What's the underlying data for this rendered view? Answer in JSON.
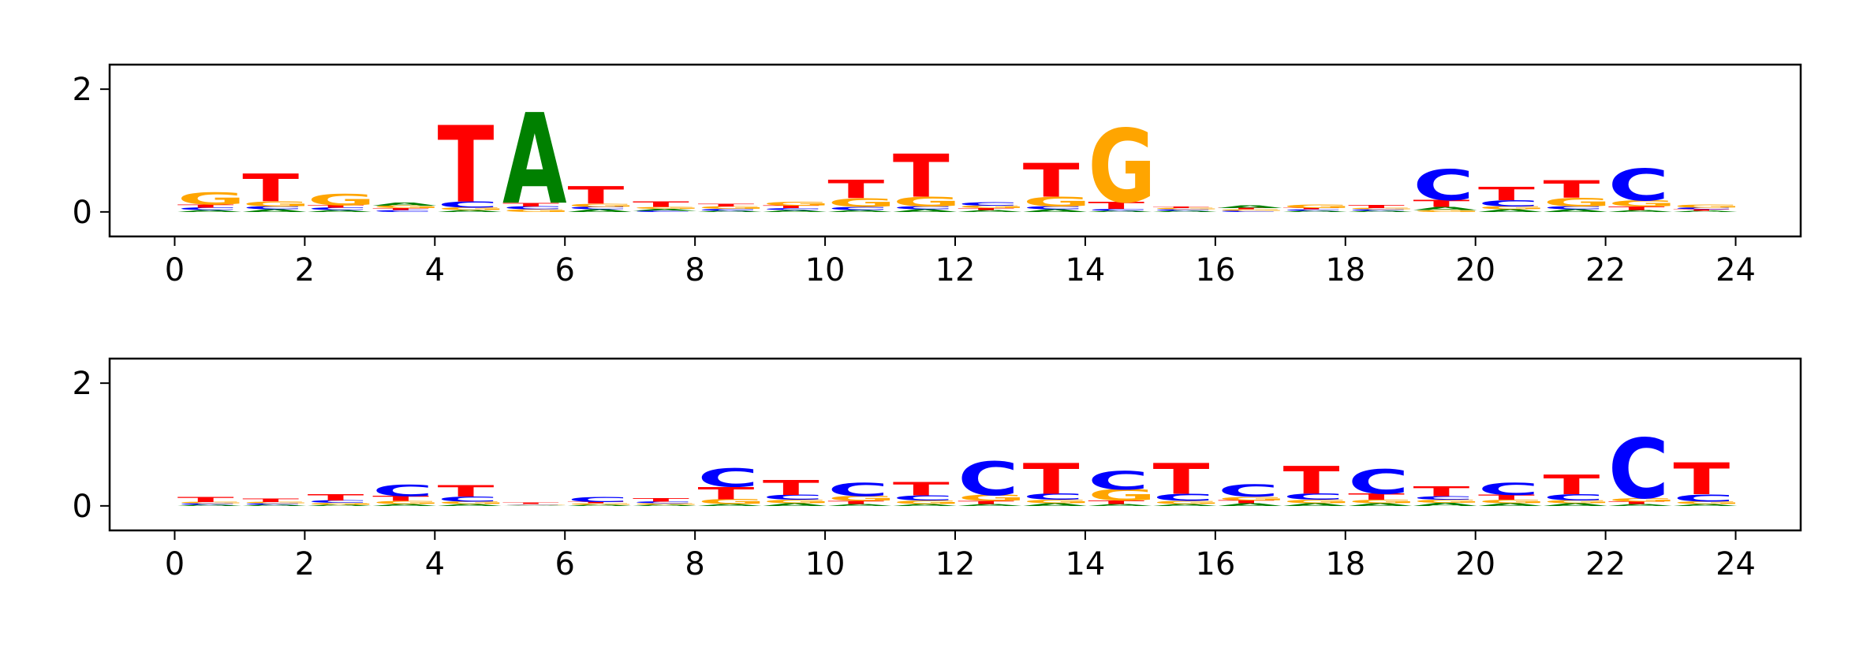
{
  "colors": {
    "A": "#008000",
    "C": "#0000ff",
    "G": "#ffa500",
    "T": "#ff0000"
  },
  "chart_data": [
    {
      "type": "sequence-logo",
      "title": "",
      "xlabel": "",
      "ylabel": "",
      "xlim": [
        -1,
        25
      ],
      "ylim": [
        -0.4,
        2.4
      ],
      "xticks": [
        "0",
        "2",
        "4",
        "6",
        "8",
        "10",
        "12",
        "14",
        "16",
        "18",
        "20",
        "22",
        "24"
      ],
      "yticks": [
        "0",
        "2"
      ],
      "positions": [
        {
          "pos": 0,
          "letters": {
            "A": 0.03,
            "C": 0.04,
            "G": 0.2,
            "T": 0.05
          }
        },
        {
          "pos": 1,
          "letters": {
            "A": 0.04,
            "C": 0.05,
            "G": 0.08,
            "T": 0.45
          }
        },
        {
          "pos": 2,
          "letters": {
            "A": 0.03,
            "C": 0.04,
            "G": 0.18,
            "T": 0.04
          }
        },
        {
          "pos": 3,
          "letters": {
            "A": 0.05,
            "C": 0.03,
            "G": 0.04,
            "T": 0.03
          }
        },
        {
          "pos": 4,
          "letters": {
            "A": 0.03,
            "C": 0.1,
            "G": 0.04,
            "T": 1.25
          }
        },
        {
          "pos": 5,
          "letters": {
            "A": 1.48,
            "C": 0.05,
            "G": 0.04,
            "T": 0.06
          }
        },
        {
          "pos": 6,
          "letters": {
            "A": 0.04,
            "C": 0.04,
            "G": 0.05,
            "T": 0.28
          }
        },
        {
          "pos": 7,
          "letters": {
            "A": 0.03,
            "C": 0.02,
            "G": 0.03,
            "T": 0.09
          }
        },
        {
          "pos": 8,
          "letters": {
            "A": 0.02,
            "C": 0.03,
            "G": 0.04,
            "T": 0.04
          }
        },
        {
          "pos": 9,
          "letters": {
            "A": 0.03,
            "C": 0.03,
            "G": 0.07,
            "T": 0.04
          }
        },
        {
          "pos": 10,
          "letters": {
            "A": 0.03,
            "C": 0.05,
            "G": 0.14,
            "T": 0.3
          }
        },
        {
          "pos": 11,
          "letters": {
            "A": 0.04,
            "C": 0.05,
            "G": 0.16,
            "T": 0.7
          }
        },
        {
          "pos": 12,
          "letters": {
            "A": 0.03,
            "C": 0.06,
            "G": 0.04,
            "T": 0.03
          }
        },
        {
          "pos": 13,
          "letters": {
            "A": 0.04,
            "C": 0.05,
            "G": 0.16,
            "T": 0.55
          }
        },
        {
          "pos": 14,
          "letters": {
            "A": 0.02,
            "C": 0.03,
            "G": 1.2,
            "T": 0.12
          }
        },
        {
          "pos": 15,
          "letters": {
            "A": 0.02,
            "C": 0.02,
            "G": 0.02,
            "T": 0.02
          }
        },
        {
          "pos": 16,
          "letters": {
            "A": 0.04,
            "C": 0.02,
            "G": 0.02,
            "T": 0.02
          }
        },
        {
          "pos": 17,
          "letters": {
            "A": 0.02,
            "C": 0.02,
            "G": 0.06,
            "T": 0.02
          }
        },
        {
          "pos": 18,
          "letters": {
            "A": 0.02,
            "C": 0.02,
            "G": 0.02,
            "T": 0.05
          }
        },
        {
          "pos": 19,
          "letters": {
            "A": 0.05,
            "C": 0.5,
            "G": 0.03,
            "T": 0.12
          }
        },
        {
          "pos": 20,
          "letters": {
            "A": 0.04,
            "C": 0.1,
            "G": 0.05,
            "T": 0.22
          }
        },
        {
          "pos": 21,
          "letters": {
            "A": 0.04,
            "C": 0.05,
            "G": 0.14,
            "T": 0.28
          }
        },
        {
          "pos": 22,
          "letters": {
            "A": 0.03,
            "C": 0.52,
            "G": 0.1,
            "T": 0.06
          }
        },
        {
          "pos": 23,
          "letters": {
            "A": 0.02,
            "C": 0.03,
            "G": 0.05,
            "T": 0.02
          }
        }
      ]
    },
    {
      "type": "sequence-logo",
      "title": "",
      "xlabel": "",
      "ylabel": "",
      "xlim": [
        -1,
        25
      ],
      "ylim": [
        -0.4,
        2.4
      ],
      "xticks": [
        "0",
        "2",
        "4",
        "6",
        "8",
        "10",
        "12",
        "14",
        "16",
        "18",
        "20",
        "22",
        "24"
      ],
      "yticks": [
        "0",
        "2"
      ],
      "positions": [
        {
          "pos": 0,
          "letters": {
            "A": 0.02,
            "C": 0.02,
            "G": 0.02,
            "T": 0.08
          }
        },
        {
          "pos": 1,
          "letters": {
            "A": 0.02,
            "C": 0.02,
            "G": 0.02,
            "T": 0.06
          }
        },
        {
          "pos": 2,
          "letters": {
            "A": 0.02,
            "C": 0.04,
            "G": 0.03,
            "T": 0.1
          }
        },
        {
          "pos": 3,
          "letters": {
            "A": 0.03,
            "C": 0.18,
            "G": 0.05,
            "T": 0.08
          }
        },
        {
          "pos": 4,
          "letters": {
            "A": 0.03,
            "C": 0.08,
            "G": 0.04,
            "T": 0.18
          }
        },
        {
          "pos": 5,
          "letters": {
            "A": 0.01,
            "C": 0.01,
            "G": 0.01,
            "T": 0.02
          }
        },
        {
          "pos": 6,
          "letters": {
            "A": 0.02,
            "C": 0.08,
            "G": 0.02,
            "T": 0.02
          }
        },
        {
          "pos": 7,
          "letters": {
            "A": 0.02,
            "C": 0.03,
            "G": 0.02,
            "T": 0.06
          }
        },
        {
          "pos": 8,
          "letters": {
            "A": 0.03,
            "C": 0.3,
            "G": 0.08,
            "T": 0.2
          }
        },
        {
          "pos": 9,
          "letters": {
            "A": 0.04,
            "C": 0.08,
            "G": 0.06,
            "T": 0.24
          }
        },
        {
          "pos": 10,
          "letters": {
            "A": 0.03,
            "C": 0.22,
            "G": 0.08,
            "T": 0.05
          }
        },
        {
          "pos": 11,
          "letters": {
            "A": 0.03,
            "C": 0.08,
            "G": 0.06,
            "T": 0.22
          }
        },
        {
          "pos": 12,
          "letters": {
            "A": 0.03,
            "C": 0.55,
            "G": 0.1,
            "T": 0.05
          }
        },
        {
          "pos": 13,
          "letters": {
            "A": 0.04,
            "C": 0.1,
            "G": 0.06,
            "T": 0.5
          }
        },
        {
          "pos": 14,
          "letters": {
            "A": 0.03,
            "C": 0.3,
            "G": 0.18,
            "T": 0.06
          }
        },
        {
          "pos": 15,
          "letters": {
            "A": 0.03,
            "C": 0.12,
            "G": 0.05,
            "T": 0.5
          }
        },
        {
          "pos": 16,
          "letters": {
            "A": 0.04,
            "C": 0.2,
            "G": 0.06,
            "T": 0.05
          }
        },
        {
          "pos": 17,
          "letters": {
            "A": 0.04,
            "C": 0.1,
            "G": 0.06,
            "T": 0.45
          }
        },
        {
          "pos": 18,
          "letters": {
            "A": 0.04,
            "C": 0.4,
            "G": 0.06,
            "T": 0.1
          }
        },
        {
          "pos": 19,
          "letters": {
            "A": 0.05,
            "C": 0.06,
            "G": 0.05,
            "T": 0.16
          }
        },
        {
          "pos": 20,
          "letters": {
            "A": 0.04,
            "C": 0.2,
            "G": 0.06,
            "T": 0.08
          }
        },
        {
          "pos": 21,
          "letters": {
            "A": 0.04,
            "C": 0.1,
            "G": 0.05,
            "T": 0.32
          }
        },
        {
          "pos": 22,
          "letters": {
            "A": 0.03,
            "C": 0.98,
            "G": 0.06,
            "T": 0.04
          }
        },
        {
          "pos": 23,
          "letters": {
            "A": 0.03,
            "C": 0.12,
            "G": 0.04,
            "T": 0.52
          }
        }
      ]
    }
  ]
}
